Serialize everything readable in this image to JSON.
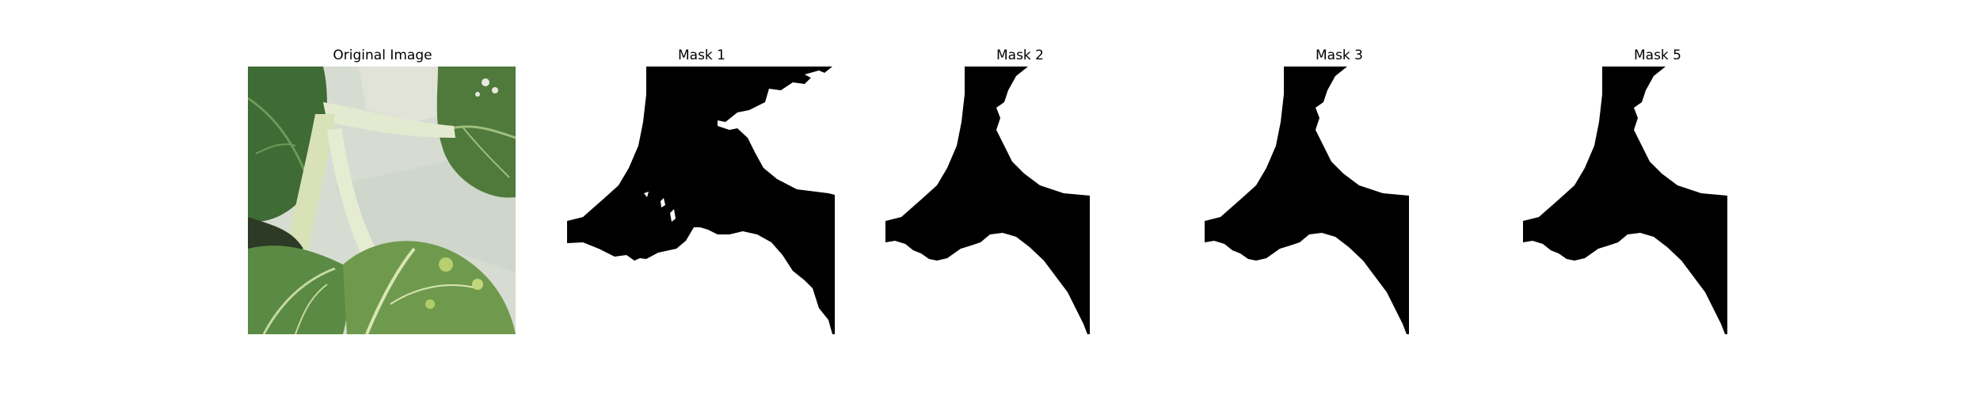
{
  "panels": [
    {
      "title": "Original Image",
      "image": "photo of green leafy plant (bok choy) with pale stems against a light background"
    },
    {
      "title": "Mask 1",
      "image": "binary segmentation mask, black region on white, ragged edges"
    },
    {
      "title": "Mask 2",
      "image": "binary segmentation mask, black region on white"
    },
    {
      "title": "Mask 3",
      "image": "binary segmentation mask, black region on white"
    },
    {
      "title": "Mask 5",
      "image": "binary segmentation mask, black region on white"
    }
  ],
  "colors": {
    "mask_fg": "#000000",
    "mask_bg": "#ffffff",
    "leaf_dark": "#3f6b35",
    "leaf_mid": "#6b8f4e",
    "leaf_light": "#a9c07a",
    "stem": "#dfe6c8",
    "background": "#d9ded6"
  }
}
